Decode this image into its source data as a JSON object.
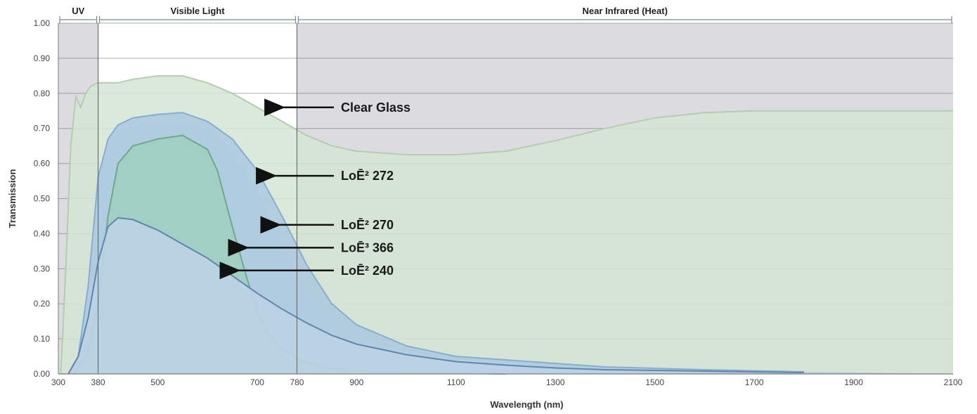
{
  "chart_data": {
    "type": "area",
    "xlabel": "Wavelength (nm)",
    "ylabel": "Transmission",
    "xlim": [
      300,
      2100
    ],
    "ylim": [
      0,
      1.0
    ],
    "x_ticks": [
      {
        "value": 300,
        "label": "300"
      },
      {
        "value": 380,
        "label": "380"
      },
      {
        "value": 500,
        "label": "500"
      },
      {
        "value": 700,
        "label": "700"
      },
      {
        "value": 780,
        "label": "780"
      },
      {
        "value": 900,
        "label": "900"
      },
      {
        "value": 1100,
        "label": "1100"
      },
      {
        "value": 1300,
        "label": "1300"
      },
      {
        "value": 1500,
        "label": "1500"
      },
      {
        "value": 1700,
        "label": "1700"
      },
      {
        "value": 1900,
        "label": "1900"
      },
      {
        "value": 2100,
        "label": "2100"
      }
    ],
    "y_ticks": [
      {
        "value": 0.0,
        "label": "0.00"
      },
      {
        "value": 0.1,
        "label": "0.10"
      },
      {
        "value": 0.2,
        "label": "0.20"
      },
      {
        "value": 0.3,
        "label": "0.30"
      },
      {
        "value": 0.4,
        "label": "0.40"
      },
      {
        "value": 0.5,
        "label": "0.50"
      },
      {
        "value": 0.6,
        "label": "0.60"
      },
      {
        "value": 0.7,
        "label": "0.70"
      },
      {
        "value": 0.8,
        "label": "0.80"
      },
      {
        "value": 0.9,
        "label": "0.90"
      },
      {
        "value": 1.0,
        "label": "1.00"
      }
    ],
    "grid": true,
    "regions": [
      {
        "label": "UV",
        "from": 300,
        "to": 380,
        "shaded": true
      },
      {
        "label": "Visible Light",
        "from": 380,
        "to": 780,
        "shaded": false
      },
      {
        "label": "Near Infrared (Heat)",
        "from": 780,
        "to": 2100,
        "shaded": true
      }
    ],
    "series": [
      {
        "name": "Clear Glass",
        "fill": "#d5e5d3",
        "stroke": "#b2cdb0",
        "fill_opacity": 0.85,
        "points": [
          [
            305,
            0
          ],
          [
            315,
            0.3
          ],
          [
            325,
            0.65
          ],
          [
            335,
            0.79
          ],
          [
            345,
            0.76
          ],
          [
            355,
            0.8
          ],
          [
            365,
            0.82
          ],
          [
            380,
            0.83
          ],
          [
            420,
            0.83
          ],
          [
            450,
            0.84
          ],
          [
            500,
            0.85
          ],
          [
            550,
            0.85
          ],
          [
            600,
            0.83
          ],
          [
            650,
            0.8
          ],
          [
            700,
            0.76
          ],
          [
            750,
            0.72
          ],
          [
            800,
            0.68
          ],
          [
            850,
            0.65
          ],
          [
            900,
            0.635
          ],
          [
            1000,
            0.625
          ],
          [
            1100,
            0.625
          ],
          [
            1200,
            0.635
          ],
          [
            1300,
            0.665
          ],
          [
            1400,
            0.7
          ],
          [
            1500,
            0.73
          ],
          [
            1600,
            0.745
          ],
          [
            1700,
            0.75
          ],
          [
            1800,
            0.75
          ],
          [
            1900,
            0.75
          ],
          [
            2000,
            0.75
          ],
          [
            2100,
            0.75
          ],
          [
            2100,
            0
          ]
        ],
        "callout": {
          "text": "Clear Glass",
          "x": 730,
          "y": 0.76
        }
      },
      {
        "name": "LoĒ² 272",
        "fill": "#cde1ea",
        "stroke": "#e8f0f3",
        "fill_opacity": 0.85,
        "points": [
          [
            320,
            0
          ],
          [
            340,
            0.05
          ],
          [
            360,
            0.25
          ],
          [
            380,
            0.55
          ],
          [
            400,
            0.66
          ],
          [
            420,
            0.7
          ],
          [
            450,
            0.71
          ],
          [
            500,
            0.72
          ],
          [
            550,
            0.72
          ],
          [
            600,
            0.7
          ],
          [
            650,
            0.64
          ],
          [
            700,
            0.53
          ],
          [
            750,
            0.38
          ],
          [
            800,
            0.24
          ],
          [
            850,
            0.15
          ],
          [
            900,
            0.1
          ],
          [
            1000,
            0.06
          ],
          [
            1100,
            0.04
          ],
          [
            1200,
            0.03
          ],
          [
            1300,
            0.02
          ],
          [
            1400,
            0.015
          ],
          [
            1600,
            0.01
          ],
          [
            1800,
            0.005
          ],
          [
            2100,
            0
          ],
          [
            2100,
            0
          ]
        ],
        "callout": {
          "text": "LoĒ² 272",
          "x": 713,
          "y": 0.565
        }
      },
      {
        "name": "LoĒ² 270",
        "fill": "#a9c8de",
        "stroke": "#87add0",
        "fill_opacity": 0.85,
        "points": [
          [
            320,
            0
          ],
          [
            340,
            0.05
          ],
          [
            360,
            0.25
          ],
          [
            380,
            0.56
          ],
          [
            400,
            0.67
          ],
          [
            420,
            0.71
          ],
          [
            450,
            0.73
          ],
          [
            500,
            0.74
          ],
          [
            550,
            0.745
          ],
          [
            600,
            0.72
          ],
          [
            650,
            0.67
          ],
          [
            700,
            0.58
          ],
          [
            750,
            0.45
          ],
          [
            800,
            0.31
          ],
          [
            850,
            0.2
          ],
          [
            900,
            0.14
          ],
          [
            1000,
            0.08
          ],
          [
            1100,
            0.05
          ],
          [
            1200,
            0.04
          ],
          [
            1300,
            0.03
          ],
          [
            1400,
            0.02
          ],
          [
            1600,
            0.012
          ],
          [
            1800,
            0.006
          ],
          [
            2100,
            0
          ],
          [
            2100,
            0
          ]
        ],
        "callout": {
          "text": "LoĒ² 270",
          "x": 722,
          "y": 0.425
        }
      },
      {
        "name": "LoĒ³ 366",
        "fill": "#9fd0bd",
        "stroke": "#6fa88d",
        "fill_opacity": 0.8,
        "points": [
          [
            330,
            0
          ],
          [
            360,
            0.06
          ],
          [
            380,
            0.2
          ],
          [
            400,
            0.45
          ],
          [
            420,
            0.6
          ],
          [
            450,
            0.65
          ],
          [
            500,
            0.67
          ],
          [
            550,
            0.68
          ],
          [
            600,
            0.64
          ],
          [
            620,
            0.58
          ],
          [
            650,
            0.42
          ],
          [
            680,
            0.27
          ],
          [
            700,
            0.18
          ],
          [
            720,
            0.12
          ],
          [
            750,
            0.07
          ],
          [
            800,
            0.03
          ],
          [
            850,
            0.015
          ],
          [
            900,
            0.008
          ],
          [
            1000,
            0.004
          ],
          [
            1200,
            0
          ],
          [
            2100,
            0
          ]
        ],
        "callout": {
          "text": "LoĒ³ 366",
          "x": 657,
          "y": 0.36
        }
      },
      {
        "name": "LoĒ² 240",
        "fill": "#bdd3e5",
        "stroke": "#5f86ad",
        "fill_opacity": 0.9,
        "points": [
          [
            320,
            0
          ],
          [
            340,
            0.05
          ],
          [
            360,
            0.16
          ],
          [
            380,
            0.32
          ],
          [
            400,
            0.42
          ],
          [
            420,
            0.445
          ],
          [
            450,
            0.44
          ],
          [
            500,
            0.41
          ],
          [
            550,
            0.37
          ],
          [
            600,
            0.33
          ],
          [
            650,
            0.28
          ],
          [
            700,
            0.23
          ],
          [
            750,
            0.185
          ],
          [
            800,
            0.145
          ],
          [
            850,
            0.11
          ],
          [
            900,
            0.085
          ],
          [
            1000,
            0.055
          ],
          [
            1100,
            0.035
          ],
          [
            1200,
            0.025
          ],
          [
            1300,
            0.017
          ],
          [
            1400,
            0.012
          ],
          [
            1600,
            0.008
          ],
          [
            1800,
            0.004
          ],
          [
            2100,
            0
          ],
          [
            2100,
            0
          ]
        ],
        "callout": {
          "text": "LoĒ² 240",
          "x": 640,
          "y": 0.295
        }
      }
    ]
  },
  "colors": {
    "shaded_region": "#dcdbe0",
    "grid_major": "#6d6d6d",
    "grid_minor": "#9a9a9a",
    "arrow": "#111111"
  }
}
